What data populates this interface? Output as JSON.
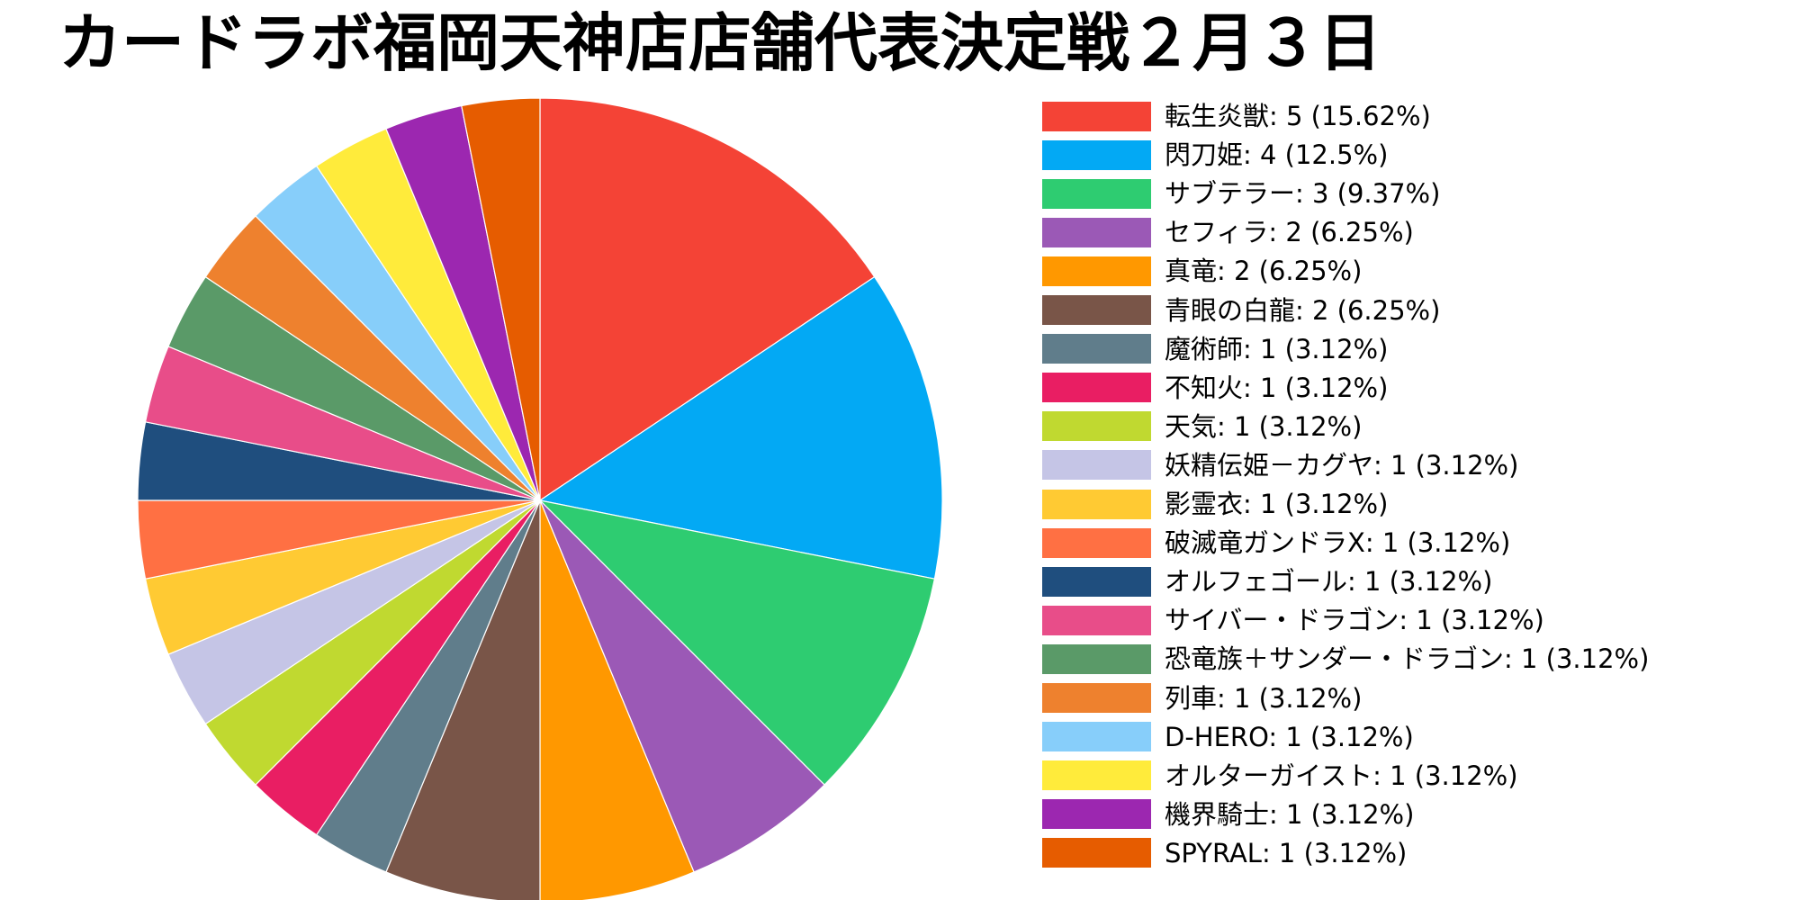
{
  "chart_data": {
    "type": "pie",
    "title": "カードラボ福岡天神店店舗代表決定戦２月３日",
    "legend_position": "right",
    "slices": [
      {
        "label": "転生炎獣",
        "value": 5,
        "percent": "15.62%",
        "color": "#f44336"
      },
      {
        "label": "閃刀姫",
        "value": 4,
        "percent": "12.5%",
        "color": "#03a9f4"
      },
      {
        "label": "サブテラー",
        "value": 3,
        "percent": "9.37%",
        "color": "#2ecc71"
      },
      {
        "label": "セフィラ",
        "value": 2,
        "percent": "6.25%",
        "color": "#9b59b6"
      },
      {
        "label": "真竜",
        "value": 2,
        "percent": "6.25%",
        "color": "#ff9800"
      },
      {
        "label": "青眼の白龍",
        "value": 2,
        "percent": "6.25%",
        "color": "#795548"
      },
      {
        "label": "魔術師",
        "value": 1,
        "percent": "3.12%",
        "color": "#607d8b"
      },
      {
        "label": "不知火",
        "value": 1,
        "percent": "3.12%",
        "color": "#e91e63"
      },
      {
        "label": "天気",
        "value": 1,
        "percent": "3.12%",
        "color": "#c0d930"
      },
      {
        "label": "妖精伝姫－カグヤ",
        "value": 1,
        "percent": "3.12%",
        "color": "#c5c5e6"
      },
      {
        "label": "影霊衣",
        "value": 1,
        "percent": "3.12%",
        "color": "#ffca33"
      },
      {
        "label": "破滅竜ガンドラX",
        "value": 1,
        "percent": "3.12%",
        "color": "#ff7043"
      },
      {
        "label": "オルフェゴール",
        "value": 1,
        "percent": "3.12%",
        "color": "#1f4e7e"
      },
      {
        "label": "サイバー・ドラゴン",
        "value": 1,
        "percent": "3.12%",
        "color": "#e84d89"
      },
      {
        "label": "恐竜族＋サンダー・ドラゴン",
        "value": 1,
        "percent": "3.12%",
        "color": "#5a9a68"
      },
      {
        "label": "列車",
        "value": 1,
        "percent": "3.12%",
        "color": "#ee812e"
      },
      {
        "label": "D-HERO",
        "value": 1,
        "percent": "3.12%",
        "color": "#87cefa"
      },
      {
        "label": "オルターガイスト",
        "value": 1,
        "percent": "3.12%",
        "color": "#ffeb3b"
      },
      {
        "label": "機界騎士",
        "value": 1,
        "percent": "3.12%",
        "color": "#9c27b0"
      },
      {
        "label": "SPYRAL",
        "value": 1,
        "percent": "3.12%",
        "color": "#e65c00"
      }
    ]
  }
}
